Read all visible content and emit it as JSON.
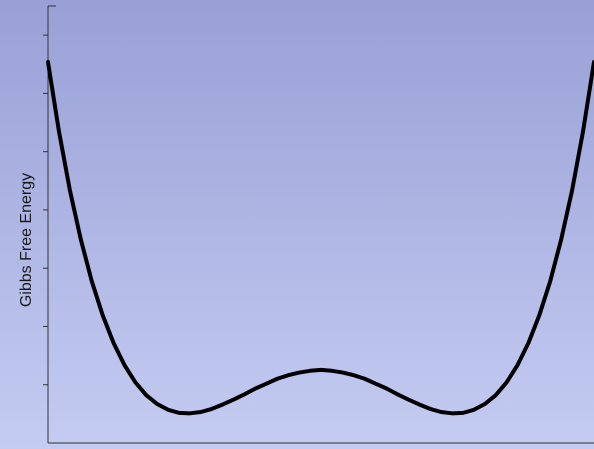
{
  "chart_data": {
    "type": "line",
    "title": "",
    "xlabel": "",
    "ylabel": "Gibbs Free Energy",
    "series": [
      {
        "x": [
          0.0,
          0.02,
          0.04,
          0.06,
          0.08,
          0.1,
          0.12,
          0.14,
          0.16,
          0.18,
          0.2,
          0.22,
          0.24,
          0.26,
          0.28,
          0.3,
          0.32,
          0.34,
          0.36,
          0.38,
          0.4,
          0.42,
          0.44,
          0.46,
          0.48,
          0.5,
          0.52,
          0.54,
          0.56,
          0.58,
          0.6,
          0.62,
          0.64,
          0.66,
          0.68,
          0.7,
          0.72,
          0.74,
          0.76,
          0.78,
          0.8,
          0.82,
          0.84,
          0.86,
          0.88,
          0.9,
          0.92,
          0.94,
          0.96,
          0.98,
          1.0
        ],
        "y": [
          0.86,
          0.704,
          0.571,
          0.46,
          0.366,
          0.289,
          0.226,
          0.176,
          0.137,
          0.108,
          0.088,
          0.075,
          0.068,
          0.067,
          0.07,
          0.077,
          0.087,
          0.098,
          0.11,
          0.123,
          0.134,
          0.145,
          0.153,
          0.159,
          0.163,
          0.165,
          0.163,
          0.159,
          0.153,
          0.145,
          0.134,
          0.123,
          0.11,
          0.098,
          0.087,
          0.077,
          0.07,
          0.067,
          0.068,
          0.075,
          0.088,
          0.108,
          0.137,
          0.176,
          0.226,
          0.289,
          0.366,
          0.46,
          0.571,
          0.704,
          0.86
        ],
        "color": "#000000"
      }
    ],
    "xlim": [
      0,
      1
    ],
    "ylim": [
      0,
      1
    ],
    "grid": false,
    "background_gradient": [
      "#98a0d6",
      "#c5ccf2"
    ],
    "y_ticks_count": 7
  }
}
